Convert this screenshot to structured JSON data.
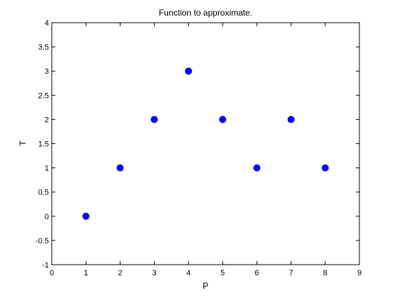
{
  "chart_data": {
    "type": "scatter",
    "title": "Function to approximate.",
    "xlabel": "P",
    "ylabel": "T",
    "xlim": [
      0,
      9
    ],
    "ylim": [
      -1,
      4
    ],
    "xticks": [
      0,
      1,
      2,
      3,
      4,
      5,
      6,
      7,
      8,
      9
    ],
    "yticks": [
      -1,
      -0.5,
      0,
      0.5,
      1,
      1.5,
      2,
      2.5,
      3,
      3.5,
      4
    ],
    "xtick_labels": [
      "0",
      "1",
      "2",
      "3",
      "4",
      "5",
      "6",
      "7",
      "8",
      "9"
    ],
    "ytick_labels": [
      "-1",
      "-0.5",
      "0",
      "0.5",
      "1",
      "1.5",
      "2",
      "2.5",
      "3",
      "3.5",
      "4"
    ],
    "grid": false,
    "marker_color": "#0000ff",
    "x": [
      1,
      2,
      3,
      4,
      5,
      6,
      7,
      8
    ],
    "y": [
      0,
      1,
      2,
      3,
      2,
      1,
      2,
      1
    ]
  }
}
